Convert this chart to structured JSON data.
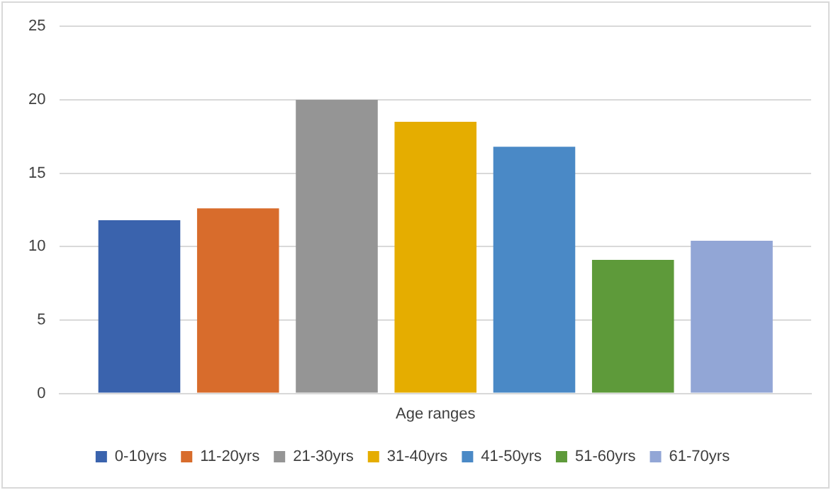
{
  "chart_data": {
    "type": "bar",
    "categories": [
      "Age ranges"
    ],
    "series": [
      {
        "name": "0-10yrs",
        "color": "#3a63ad",
        "values": [
          11.8
        ]
      },
      {
        "name": "11-20yrs",
        "color": "#d86c2c",
        "values": [
          12.6
        ]
      },
      {
        "name": "21-30yrs",
        "color": "#959595",
        "values": [
          20.0
        ]
      },
      {
        "name": "31-40yrs",
        "color": "#e5ad00",
        "values": [
          18.5
        ]
      },
      {
        "name": "41-50yrs",
        "color": "#4a89c6",
        "values": [
          16.8
        ]
      },
      {
        "name": "51-60yrs",
        "color": "#5e9a3a",
        "values": [
          9.1
        ]
      },
      {
        "name": "61-70yrs",
        "color": "#92a6d6",
        "values": [
          10.4
        ]
      }
    ],
    "ylim": [
      0,
      25
    ],
    "yticks": [
      0,
      5,
      10,
      15,
      20,
      25
    ],
    "grid": "y",
    "legend": "bottom"
  }
}
